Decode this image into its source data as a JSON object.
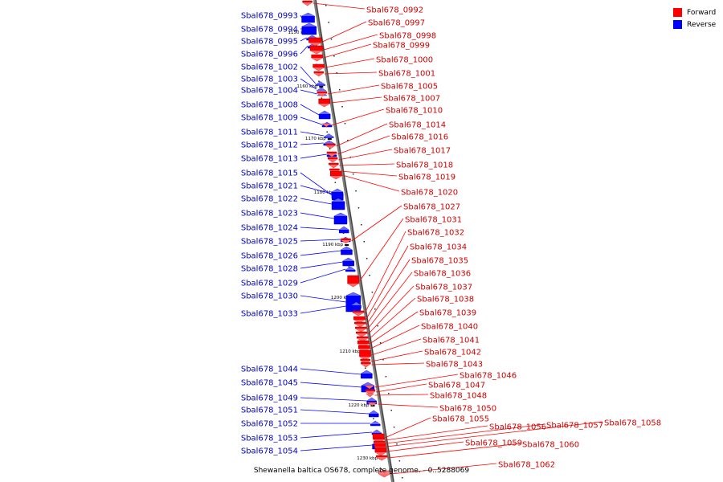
{
  "legend": {
    "forward_label": "Forward",
    "reverse_label": "Reverse",
    "forward_color": "#ff0000",
    "reverse_color": "#0000ff"
  },
  "caption": "Shewanella baltica OS678, complete genome. - 0..5288069",
  "ticks": [
    "1150 kbp",
    "1160 kbp",
    "1170 kbp",
    "1180 kbp",
    "1190 kbp",
    "1200 kbp",
    "1210 kbp",
    "1220 kbp",
    "1230 kbp"
  ],
  "reverse_genes": [
    "Sbal678_0993",
    "Sbal678_0994",
    "Sbal678_0995",
    "Sbal678_0996",
    "Sbal678_1002",
    "Sbal678_1003",
    "Sbal678_1004",
    "Sbal678_1008",
    "Sbal678_1009",
    "Sbal678_1011",
    "Sbal678_1012",
    "Sbal678_1013",
    "Sbal678_1015",
    "Sbal678_1021",
    "Sbal678_1022",
    "Sbal678_1023",
    "Sbal678_1024",
    "Sbal678_1025",
    "Sbal678_1026",
    "Sbal678_1028",
    "Sbal678_1029",
    "Sbal678_1030",
    "Sbal678_1033",
    "Sbal678_1044",
    "Sbal678_1045",
    "Sbal678_1049",
    "Sbal678_1051",
    "Sbal678_1052",
    "Sbal678_1053",
    "Sbal678_1054"
  ],
  "forward_genes": [
    "Sbal678_0992",
    "Sbal678_0997",
    "Sbal678_0998",
    "Sbal678_0999",
    "Sbal678_1000",
    "Sbal678_1001",
    "Sbal678_1005",
    "Sbal678_1007",
    "Sbal678_1010",
    "Sbal678_1014",
    "Sbal678_1016",
    "Sbal678_1017",
    "Sbal678_1018",
    "Sbal678_1019",
    "Sbal678_1020",
    "Sbal678_1027",
    "Sbal678_1031",
    "Sbal678_1032",
    "Sbal678_1034",
    "Sbal678_1035",
    "Sbal678_1036",
    "Sbal678_1037",
    "Sbal678_1038",
    "Sbal678_1039",
    "Sbal678_1040",
    "Sbal678_1041",
    "Sbal678_1042",
    "Sbal678_1043",
    "Sbal678_1046",
    "Sbal678_1047",
    "Sbal678_1048",
    "Sbal678_1050",
    "Sbal678_1055",
    "Sbal678_1056",
    "Sbal678_1057",
    "Sbal678_1058",
    "Sbal678_1059",
    "Sbal678_1060",
    "Sbal678_1062"
  ]
}
